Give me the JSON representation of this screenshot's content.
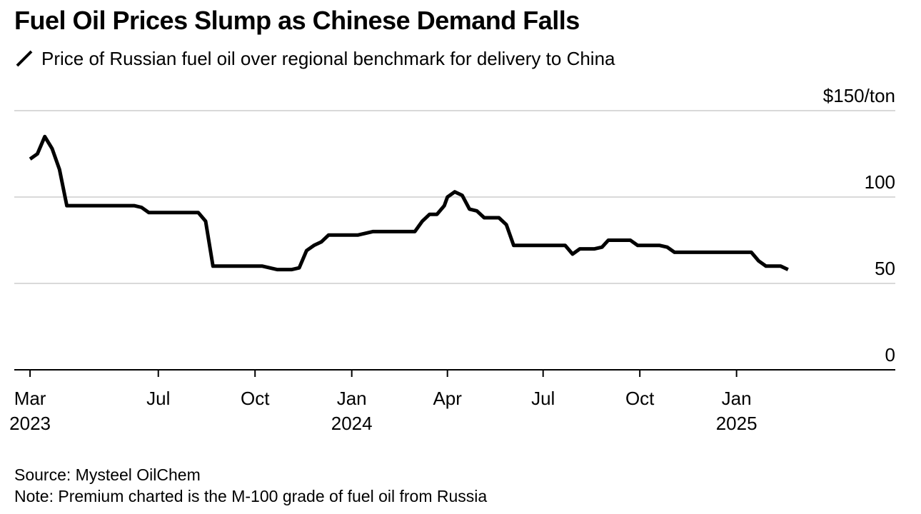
{
  "chart_data": {
    "type": "line",
    "title": "Fuel Oil Prices Slump as Chinese Demand Falls",
    "series": [
      {
        "name": "Price of Russian fuel oil over regional benchmark for delivery to China",
        "color": "#000000",
        "points": [
          [
            "2023-03-01",
            122
          ],
          [
            "2023-03-08",
            125
          ],
          [
            "2023-03-15",
            135
          ],
          [
            "2023-03-22",
            128
          ],
          [
            "2023-03-29",
            116
          ],
          [
            "2023-04-05",
            95
          ],
          [
            "2023-04-12",
            95
          ],
          [
            "2023-05-01",
            95
          ],
          [
            "2023-06-01",
            95
          ],
          [
            "2023-06-08",
            95
          ],
          [
            "2023-06-15",
            94
          ],
          [
            "2023-06-22",
            91
          ],
          [
            "2023-07-01",
            91
          ],
          [
            "2023-08-01",
            91
          ],
          [
            "2023-08-08",
            91
          ],
          [
            "2023-08-15",
            86
          ],
          [
            "2023-08-22",
            60
          ],
          [
            "2023-09-01",
            60
          ],
          [
            "2023-10-01",
            60
          ],
          [
            "2023-10-08",
            60
          ],
          [
            "2023-10-15",
            59
          ],
          [
            "2023-10-22",
            58
          ],
          [
            "2023-10-29",
            58
          ],
          [
            "2023-11-05",
            58
          ],
          [
            "2023-11-12",
            59
          ],
          [
            "2023-11-19",
            69
          ],
          [
            "2023-11-26",
            72
          ],
          [
            "2023-12-03",
            74
          ],
          [
            "2023-12-10",
            78
          ],
          [
            "2023-12-17",
            78
          ],
          [
            "2023-12-31",
            78
          ],
          [
            "2024-01-07",
            78
          ],
          [
            "2024-01-14",
            79
          ],
          [
            "2024-01-21",
            80
          ],
          [
            "2024-02-01",
            80
          ],
          [
            "2024-03-01",
            80
          ],
          [
            "2024-03-08",
            86
          ],
          [
            "2024-03-15",
            90
          ],
          [
            "2024-03-22",
            90
          ],
          [
            "2024-03-29",
            95
          ],
          [
            "2024-04-01",
            100
          ],
          [
            "2024-04-08",
            103
          ],
          [
            "2024-04-15",
            101
          ],
          [
            "2024-04-22",
            93
          ],
          [
            "2024-04-29",
            92
          ],
          [
            "2024-05-06",
            88
          ],
          [
            "2024-05-13",
            88
          ],
          [
            "2024-05-20",
            88
          ],
          [
            "2024-05-27",
            84
          ],
          [
            "2024-06-03",
            72
          ],
          [
            "2024-06-10",
            72
          ],
          [
            "2024-07-01",
            72
          ],
          [
            "2024-07-15",
            72
          ],
          [
            "2024-07-22",
            72
          ],
          [
            "2024-07-29",
            67
          ],
          [
            "2024-08-05",
            70
          ],
          [
            "2024-08-12",
            70
          ],
          [
            "2024-08-19",
            70
          ],
          [
            "2024-08-26",
            71
          ],
          [
            "2024-09-01",
            75
          ],
          [
            "2024-09-08",
            75
          ],
          [
            "2024-09-15",
            75
          ],
          [
            "2024-09-22",
            75
          ],
          [
            "2024-09-29",
            72
          ],
          [
            "2024-10-06",
            72
          ],
          [
            "2024-10-13",
            72
          ],
          [
            "2024-10-20",
            72
          ],
          [
            "2024-10-27",
            71
          ],
          [
            "2024-11-03",
            68
          ],
          [
            "2024-11-10",
            68
          ],
          [
            "2024-12-01",
            68
          ],
          [
            "2025-01-01",
            68
          ],
          [
            "2025-01-08",
            68
          ],
          [
            "2025-01-15",
            68
          ],
          [
            "2025-01-22",
            63
          ],
          [
            "2025-01-29",
            60
          ],
          [
            "2025-02-05",
            60
          ],
          [
            "2025-02-12",
            60
          ],
          [
            "2025-02-19",
            58
          ]
        ]
      }
    ],
    "xlabel": "",
    "ylabel": "",
    "ylim": [
      0,
      150
    ],
    "xlim": [
      "2023-02-14",
      "2025-06-01"
    ],
    "y_ticks": [
      {
        "value": 150,
        "label": "$150/ton"
      },
      {
        "value": 100,
        "label": "100"
      },
      {
        "value": 50,
        "label": "50"
      },
      {
        "value": 0,
        "label": "0"
      }
    ],
    "x_ticks": [
      {
        "date": "2023-03-01",
        "line1": "Mar",
        "line2": "2023"
      },
      {
        "date": "2023-07-01",
        "line1": "Jul",
        "line2": ""
      },
      {
        "date": "2023-10-01",
        "line1": "Oct",
        "line2": ""
      },
      {
        "date": "2024-01-01",
        "line1": "Jan",
        "line2": "2024"
      },
      {
        "date": "2024-04-01",
        "line1": "Apr",
        "line2": ""
      },
      {
        "date": "2024-07-01",
        "line1": "Jul",
        "line2": ""
      },
      {
        "date": "2024-10-01",
        "line1": "Oct",
        "line2": ""
      },
      {
        "date": "2025-01-01",
        "line1": "Jan",
        "line2": "2025"
      }
    ],
    "grid": "horizontal",
    "legend_position": "top-left",
    "source": "Source: Mysteel OilChem",
    "note": "Note: Premium charted is the M-100 grade of fuel oil from Russia"
  },
  "colors": {
    "line": "#000000",
    "gridline": "#d9d9d9",
    "axis": "#000000",
    "text": "#000000"
  }
}
